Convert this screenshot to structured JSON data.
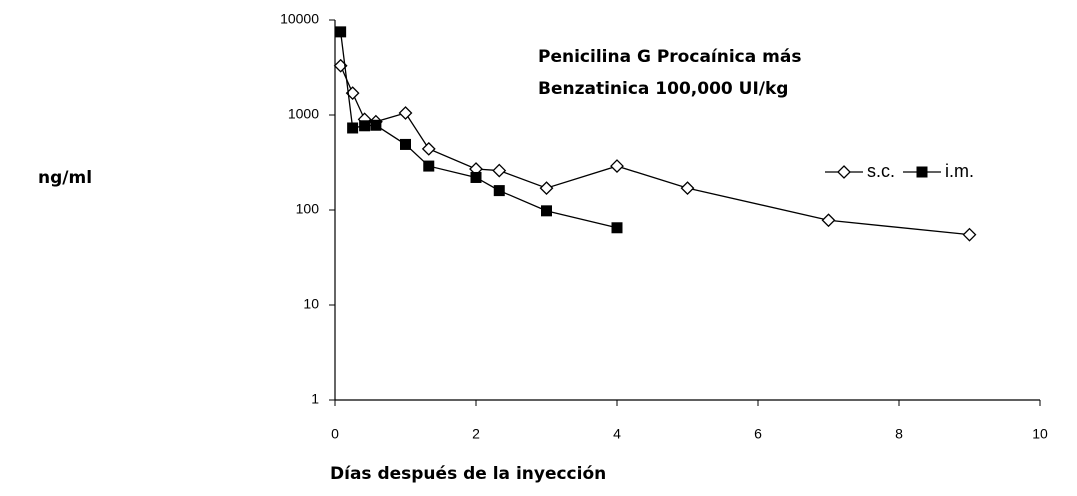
{
  "chart_data": {
    "type": "line",
    "title": [
      "Penicilina G Procaínica más",
      "Benzatinica 100,000 UI/kg"
    ],
    "xlabel": "Días después de la inyección",
    "ylabel": "ng/ml",
    "x": [
      0.08,
      0.25,
      0.42,
      0.58,
      1,
      1.33,
      2,
      2.33,
      3,
      4,
      5,
      7,
      9
    ],
    "series": [
      {
        "name": "s.c.",
        "color": "#000000",
        "marker": "diamond-open",
        "values": [
          3300,
          1700,
          900,
          850,
          1050,
          440,
          270,
          260,
          170,
          290,
          170,
          78,
          55
        ]
      },
      {
        "name": "i.m.",
        "color": "#000000",
        "marker": "square-filled",
        "values": [
          7500,
          730,
          770,
          780,
          490,
          290,
          220,
          160,
          98,
          65,
          null,
          null,
          null
        ]
      }
    ],
    "xlim": [
      0,
      10
    ],
    "xticks": [
      0,
      2,
      4,
      6,
      8,
      10
    ],
    "ylim": [
      1,
      10000
    ],
    "yticks": [
      1,
      10,
      100,
      1000,
      10000
    ],
    "log_scale": "y",
    "grid": false,
    "legend": "upper right"
  }
}
